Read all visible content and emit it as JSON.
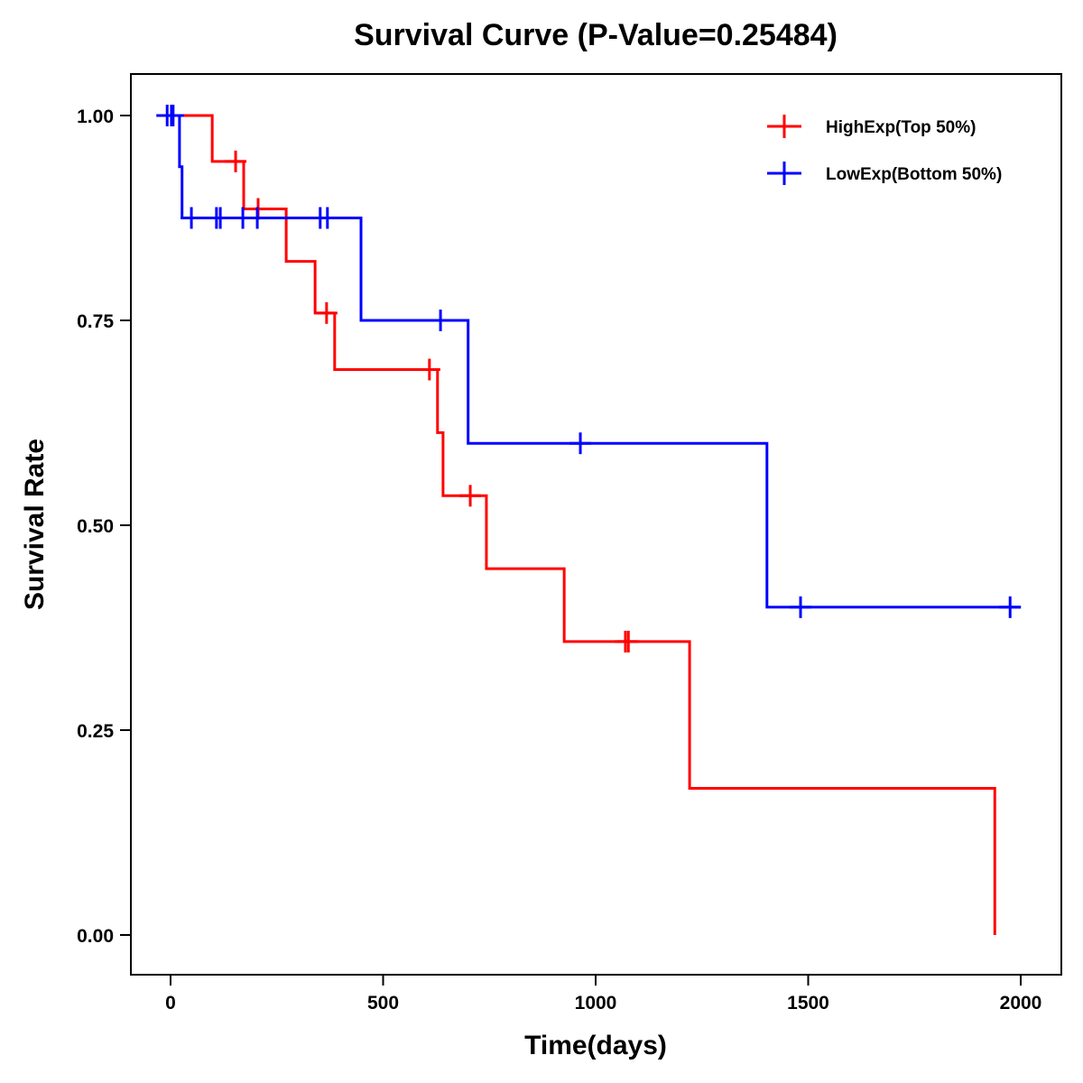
{
  "chart_data": {
    "type": "line",
    "subtype": "kaplan-meier-step",
    "title": "Survival Curve (P-Value=0.25484)",
    "xlabel": "Time(days)",
    "ylabel": "Survival Rate",
    "xlim": [
      -80,
      2080
    ],
    "ylim": [
      -0.045,
      1.045
    ],
    "x_ticks": [
      0,
      500,
      1000,
      1500,
      2000
    ],
    "x_tick_labels": [
      "0",
      "500",
      "1000",
      "1500",
      "2000"
    ],
    "y_ticks": [
      0,
      0.25,
      0.5,
      0.75,
      1.0
    ],
    "y_tick_labels": [
      "0.00",
      "0.25",
      "0.50",
      "0.75",
      "1.00"
    ],
    "grid": false,
    "legend_position": "top-right",
    "series": [
      {
        "name": "HighExp(Top 50%)",
        "color": "#ff0000",
        "steps": [
          {
            "t": 0,
            "s": 1.0
          },
          {
            "t": 98,
            "s": 0.944
          },
          {
            "t": 172,
            "s": 0.886
          },
          {
            "t": 272,
            "s": 0.822
          },
          {
            "t": 340,
            "s": 0.759
          },
          {
            "t": 386,
            "s": 0.69
          },
          {
            "t": 628,
            "s": 0.613
          },
          {
            "t": 641,
            "s": 0.536
          },
          {
            "t": 743,
            "s": 0.447
          },
          {
            "t": 926,
            "s": 0.358
          },
          {
            "t": 1221,
            "s": 0.179
          },
          {
            "t": 1939,
            "s": 0.0
          }
        ],
        "end_time": 1939,
        "censored": [
          153,
          206,
          367,
          609,
          705,
          1070,
          1077
        ]
      },
      {
        "name": "LowExp(Bottom 50%)",
        "color": "#0000ff",
        "steps": [
          {
            "t": 0,
            "s": 1.0
          },
          {
            "t": 21,
            "s": 0.9375
          },
          {
            "t": 27,
            "s": 0.875
          },
          {
            "t": 448,
            "s": 0.75
          },
          {
            "t": 700,
            "s": 0.6
          },
          {
            "t": 1403,
            "s": 0.4
          }
        ],
        "end_time": 2000,
        "censored": [
          -8,
          2,
          6,
          49,
          108,
          117,
          170,
          204,
          352,
          369,
          635,
          964,
          1482,
          1975
        ]
      }
    ]
  }
}
